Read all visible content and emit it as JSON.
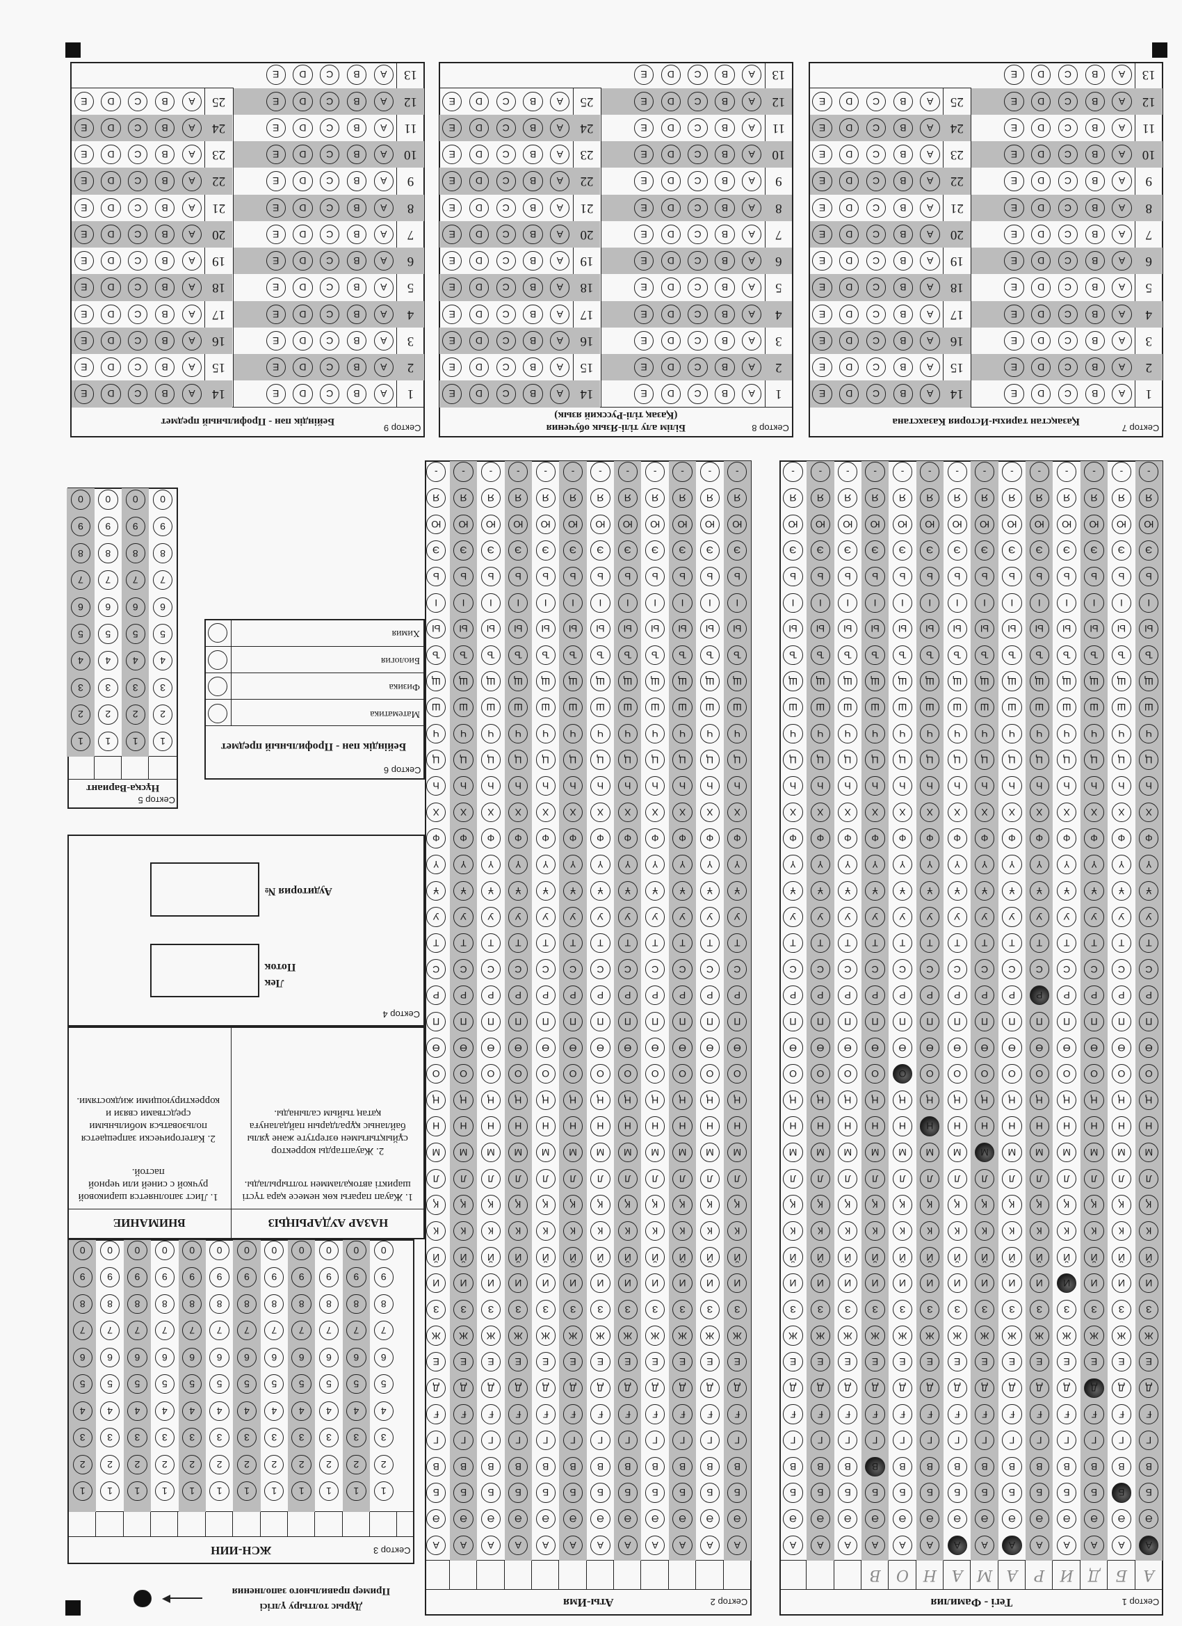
{
  "example": {
    "label_kz": "Дұрыс толтыру үлгісі",
    "label_ru": "Пример правильного заполнения"
  },
  "sector1": {
    "label": "Сектор 1",
    "title": "Тегі - Фамилия",
    "entry": [
      "А",
      "Б",
      "Д",
      "И",
      "Р",
      "А",
      "М",
      "А",
      "Н",
      "О",
      "В"
    ]
  },
  "sector2": {
    "label": "Сектор 2",
    "title": "Аты-Имя"
  },
  "alphabet": [
    "А",
    "Ә",
    "Б",
    "В",
    "Г",
    "Ғ",
    "Д",
    "Е",
    "Ж",
    "З",
    "И",
    "Й",
    "К",
    "Қ",
    "Л",
    "М",
    "Н",
    "Ң",
    "О",
    "Ө",
    "П",
    "Р",
    "С",
    "Т",
    "У",
    "Ұ",
    "Ү",
    "Ф",
    "Х",
    "Һ",
    "Ц",
    "Ч",
    "Ш",
    "Щ",
    "Ъ",
    "Ы",
    "І",
    "Ь",
    "Э",
    "Ю",
    "Я",
    "-"
  ],
  "sector3": {
    "label": "Сектор 3",
    "title": "ЖСН-ИИН"
  },
  "digits": [
    "1",
    "2",
    "3",
    "4",
    "5",
    "6",
    "7",
    "8",
    "9",
    "0"
  ],
  "notice": {
    "title_kz": "НАЗАР АУДАРЫҢЫЗ",
    "items_kz": [
      "1. Жауап парағы көк немесе қара түсті шарикті автоқаламмен толтырылады.",
      "2. Жауаптарды корректор сұйықтығымен өзгертуге және ұялы байланыс құралдарын пайдалануға қатаң тыйым салынады."
    ],
    "title_ru": "ВНИМАНИЕ",
    "items_ru": [
      "1. Лист заполняется шариковой ручкой с синей или черной пастой.",
      "2. Категорически запрещается пользоваться мобильными средствами связи и корректирующими жидкостями."
    ]
  },
  "sector4": {
    "label": "Сектор 4",
    "stream": [
      "Лек",
      "Поток"
    ],
    "room": "Аудитория №"
  },
  "sector5": {
    "label": "Сектор 5",
    "title": "Нұсқа-Вариант"
  },
  "sector6": {
    "label": "Сектор 6",
    "title": "Бейіндік пән - Профильный предмет",
    "options": [
      "Математика",
      "Физика",
      "Биология",
      "Химия"
    ]
  },
  "options": [
    "A",
    "B",
    "C",
    "D",
    "E"
  ],
  "questions": [
    1,
    2,
    3,
    4,
    5,
    6,
    7,
    8,
    9,
    10,
    11,
    12,
    13,
    14,
    15,
    16,
    17,
    18,
    19,
    20,
    21,
    22,
    23,
    24,
    25
  ],
  "tests": [
    {
      "label": "Сектор 7",
      "title": [
        "Қазақстан тарихы-История Казахстана"
      ]
    },
    {
      "label": "Сектор 8",
      "title": [
        "Білім алу тілі-Язык обучения",
        "(Қазақ тілі-Русский язык)"
      ]
    },
    {
      "label": "Сектор 9",
      "title": [
        "Бейіндік пән - Профильный предмет"
      ]
    }
  ]
}
